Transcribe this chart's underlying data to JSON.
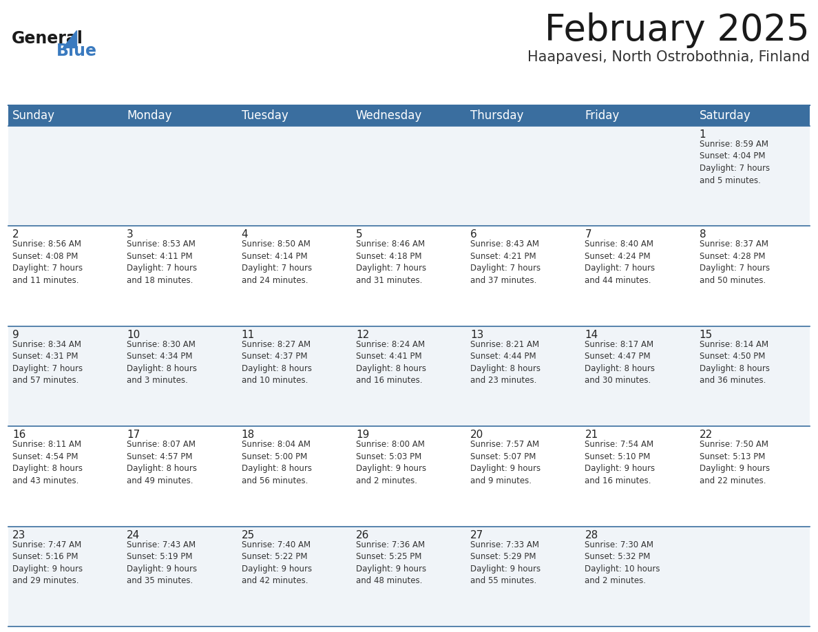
{
  "title": "February 2025",
  "subtitle": "Haapavesi, North Ostrobothnia, Finland",
  "header_color": "#3a6e9f",
  "header_text_color": "#ffffff",
  "cell_bg_even": "#f0f4f8",
  "cell_bg_odd": "#ffffff",
  "separator_color": "#3a6e9f",
  "day_text_color": "#222222",
  "info_text_color": "#333333",
  "days_of_week": [
    "Sunday",
    "Monday",
    "Tuesday",
    "Wednesday",
    "Thursday",
    "Friday",
    "Saturday"
  ],
  "weeks": [
    [
      {
        "day": null,
        "info": null
      },
      {
        "day": null,
        "info": null
      },
      {
        "day": null,
        "info": null
      },
      {
        "day": null,
        "info": null
      },
      {
        "day": null,
        "info": null
      },
      {
        "day": null,
        "info": null
      },
      {
        "day": 1,
        "info": "Sunrise: 8:59 AM\nSunset: 4:04 PM\nDaylight: 7 hours\nand 5 minutes."
      }
    ],
    [
      {
        "day": 2,
        "info": "Sunrise: 8:56 AM\nSunset: 4:08 PM\nDaylight: 7 hours\nand 11 minutes."
      },
      {
        "day": 3,
        "info": "Sunrise: 8:53 AM\nSunset: 4:11 PM\nDaylight: 7 hours\nand 18 minutes."
      },
      {
        "day": 4,
        "info": "Sunrise: 8:50 AM\nSunset: 4:14 PM\nDaylight: 7 hours\nand 24 minutes."
      },
      {
        "day": 5,
        "info": "Sunrise: 8:46 AM\nSunset: 4:18 PM\nDaylight: 7 hours\nand 31 minutes."
      },
      {
        "day": 6,
        "info": "Sunrise: 8:43 AM\nSunset: 4:21 PM\nDaylight: 7 hours\nand 37 minutes."
      },
      {
        "day": 7,
        "info": "Sunrise: 8:40 AM\nSunset: 4:24 PM\nDaylight: 7 hours\nand 44 minutes."
      },
      {
        "day": 8,
        "info": "Sunrise: 8:37 AM\nSunset: 4:28 PM\nDaylight: 7 hours\nand 50 minutes."
      }
    ],
    [
      {
        "day": 9,
        "info": "Sunrise: 8:34 AM\nSunset: 4:31 PM\nDaylight: 7 hours\nand 57 minutes."
      },
      {
        "day": 10,
        "info": "Sunrise: 8:30 AM\nSunset: 4:34 PM\nDaylight: 8 hours\nand 3 minutes."
      },
      {
        "day": 11,
        "info": "Sunrise: 8:27 AM\nSunset: 4:37 PM\nDaylight: 8 hours\nand 10 minutes."
      },
      {
        "day": 12,
        "info": "Sunrise: 8:24 AM\nSunset: 4:41 PM\nDaylight: 8 hours\nand 16 minutes."
      },
      {
        "day": 13,
        "info": "Sunrise: 8:21 AM\nSunset: 4:44 PM\nDaylight: 8 hours\nand 23 minutes."
      },
      {
        "day": 14,
        "info": "Sunrise: 8:17 AM\nSunset: 4:47 PM\nDaylight: 8 hours\nand 30 minutes."
      },
      {
        "day": 15,
        "info": "Sunrise: 8:14 AM\nSunset: 4:50 PM\nDaylight: 8 hours\nand 36 minutes."
      }
    ],
    [
      {
        "day": 16,
        "info": "Sunrise: 8:11 AM\nSunset: 4:54 PM\nDaylight: 8 hours\nand 43 minutes."
      },
      {
        "day": 17,
        "info": "Sunrise: 8:07 AM\nSunset: 4:57 PM\nDaylight: 8 hours\nand 49 minutes."
      },
      {
        "day": 18,
        "info": "Sunrise: 8:04 AM\nSunset: 5:00 PM\nDaylight: 8 hours\nand 56 minutes."
      },
      {
        "day": 19,
        "info": "Sunrise: 8:00 AM\nSunset: 5:03 PM\nDaylight: 9 hours\nand 2 minutes."
      },
      {
        "day": 20,
        "info": "Sunrise: 7:57 AM\nSunset: 5:07 PM\nDaylight: 9 hours\nand 9 minutes."
      },
      {
        "day": 21,
        "info": "Sunrise: 7:54 AM\nSunset: 5:10 PM\nDaylight: 9 hours\nand 16 minutes."
      },
      {
        "day": 22,
        "info": "Sunrise: 7:50 AM\nSunset: 5:13 PM\nDaylight: 9 hours\nand 22 minutes."
      }
    ],
    [
      {
        "day": 23,
        "info": "Sunrise: 7:47 AM\nSunset: 5:16 PM\nDaylight: 9 hours\nand 29 minutes."
      },
      {
        "day": 24,
        "info": "Sunrise: 7:43 AM\nSunset: 5:19 PM\nDaylight: 9 hours\nand 35 minutes."
      },
      {
        "day": 25,
        "info": "Sunrise: 7:40 AM\nSunset: 5:22 PM\nDaylight: 9 hours\nand 42 minutes."
      },
      {
        "day": 26,
        "info": "Sunrise: 7:36 AM\nSunset: 5:25 PM\nDaylight: 9 hours\nand 48 minutes."
      },
      {
        "day": 27,
        "info": "Sunrise: 7:33 AM\nSunset: 5:29 PM\nDaylight: 9 hours\nand 55 minutes."
      },
      {
        "day": 28,
        "info": "Sunrise: 7:30 AM\nSunset: 5:32 PM\nDaylight: 10 hours\nand 2 minutes."
      },
      {
        "day": null,
        "info": null
      }
    ]
  ],
  "title_fontsize": 38,
  "subtitle_fontsize": 15,
  "header_fontsize": 12,
  "day_num_fontsize": 11,
  "info_fontsize": 8.5,
  "fig_width": 11.88,
  "fig_height": 9.18
}
